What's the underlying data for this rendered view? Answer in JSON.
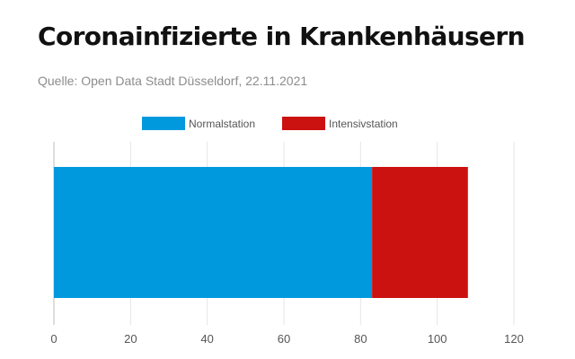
{
  "header": {
    "title": "Coronainfizierte in Krankenhäusern",
    "source": "Quelle: Open Data Stadt Düsseldorf, 22.11.2021"
  },
  "chart_data": {
    "type": "bar",
    "orientation": "horizontal",
    "stacked": true,
    "categories": [
      ""
    ],
    "series": [
      {
        "name": "Normalstation",
        "values": [
          83
        ],
        "color": "#0099dd"
      },
      {
        "name": "Intensivstation",
        "values": [
          25
        ],
        "color": "#cc1111"
      }
    ],
    "title": "Coronainfizierte in Krankenhäusern",
    "xlabel": "",
    "ylabel": "",
    "xlim": [
      0,
      120
    ],
    "xticks": [
      0,
      20,
      40,
      60,
      80,
      100,
      120
    ],
    "grid": true,
    "legend": "top-center"
  }
}
